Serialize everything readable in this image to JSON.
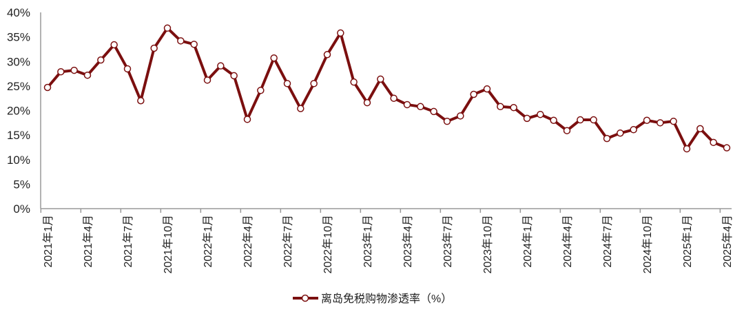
{
  "chart_data": {
    "type": "line",
    "title": "",
    "xlabel": "",
    "ylabel": "",
    "ylim": [
      0,
      40
    ],
    "yticks": [
      "0%",
      "5%",
      "10%",
      "15%",
      "20%",
      "25%",
      "30%",
      "35%",
      "40%"
    ],
    "grid": false,
    "legend_position": "bottom",
    "line_color": "#7B0F0F",
    "x": [
      "2021年1月",
      "2021年2月",
      "2021年3月",
      "2021年4月",
      "2021年5月",
      "2021年6月",
      "2021年7月",
      "2021年8月",
      "2021年9月",
      "2021年10月",
      "2021年11月",
      "2021年12月",
      "2022年1月",
      "2022年2月",
      "2022年3月",
      "2022年4月",
      "2022年5月",
      "2022年6月",
      "2022年7月",
      "2022年8月",
      "2022年9月",
      "2022年10月",
      "2022年11月",
      "2022年12月",
      "2023年1月",
      "2023年2月",
      "2023年3月",
      "2023年4月",
      "2023年5月",
      "2023年6月",
      "2023年7月",
      "2023年8月",
      "2023年9月",
      "2023年10月",
      "2023年11月",
      "2023年12月",
      "2024年1月",
      "2024年2月",
      "2024年3月",
      "2024年4月",
      "2024年5月",
      "2024年6月",
      "2024年7月",
      "2024年8月",
      "2024年9月",
      "2024年10月",
      "2024年11月",
      "2024年12月",
      "2025年1月",
      "2025年2月",
      "2025年3月",
      "2025年4月"
    ],
    "xtick_labels": [
      "2021年1月",
      "2021年4月",
      "2021年7月",
      "2021年10月",
      "2022年1月",
      "2022年4月",
      "2022年7月",
      "2022年10月",
      "2023年1月",
      "2023年4月",
      "2023年7月",
      "2023年10月",
      "2024年1月",
      "2024年4月",
      "2024年7月",
      "2024年10月",
      "2025年1月",
      "2025年4月"
    ],
    "series": [
      {
        "name": "离岛免税购物渗透率（%）",
        "values": [
          24.7,
          27.9,
          28.2,
          27.2,
          30.3,
          33.4,
          28.5,
          22.0,
          32.7,
          36.8,
          34.2,
          33.5,
          26.2,
          29.1,
          27.1,
          18.2,
          24.1,
          30.7,
          25.5,
          20.4,
          25.5,
          31.4,
          35.8,
          25.8,
          21.6,
          26.4,
          22.5,
          21.2,
          20.8,
          19.8,
          17.8,
          18.9,
          23.3,
          24.4,
          20.8,
          20.6,
          18.4,
          19.2,
          18.0,
          15.9,
          18.1,
          18.1,
          14.3,
          15.4,
          16.1,
          18.0,
          17.5,
          17.8,
          12.2,
          16.3,
          13.5,
          12.4
        ]
      }
    ]
  }
}
